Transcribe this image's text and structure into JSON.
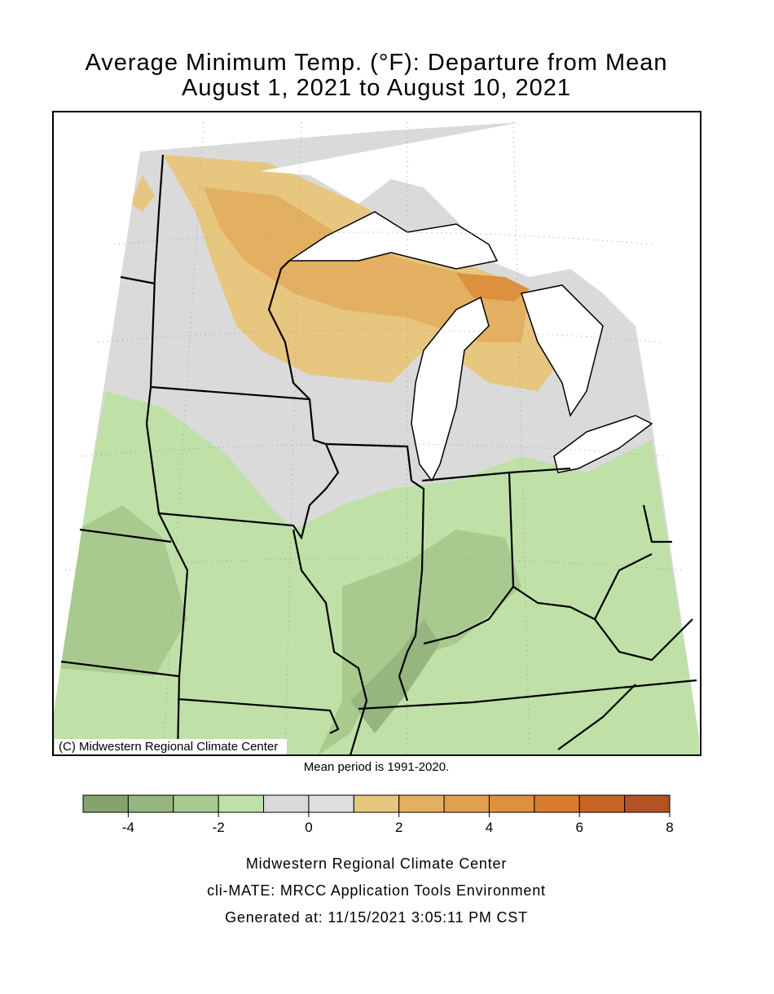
{
  "header": {
    "title_line1": "Average Minimum Temp. (°F): Departure from Mean",
    "title_line2": "August 1, 2021 to August 10, 2021"
  },
  "map": {
    "credit": "(C) Midwestern Regional Climate Center",
    "note": "Mean period is 1991-2020."
  },
  "colorbar": {
    "lim": [
      -5,
      8
    ],
    "bins": [
      -5,
      -4,
      -3,
      -2,
      -1,
      0,
      1,
      2,
      3,
      4,
      5,
      6,
      7,
      8
    ],
    "colors": [
      "#84a46c",
      "#95b67e",
      "#a9ca8f",
      "#bfe0a7",
      "#d9d9d9",
      "#dedede",
      "#e7c67f",
      "#e3b062",
      "#dfa052",
      "#dd903e",
      "#d97b2c",
      "#c96626",
      "#b45223"
    ],
    "ticks": [
      -4,
      -2,
      0,
      2,
      4,
      6,
      8
    ]
  },
  "footer": {
    "line1": "Midwestern Regional Climate Center",
    "line2": "cli-MATE: MRCC Application Tools Environment",
    "line3": "Generated at: 11/15/2021 3:05:11 PM CST"
  }
}
